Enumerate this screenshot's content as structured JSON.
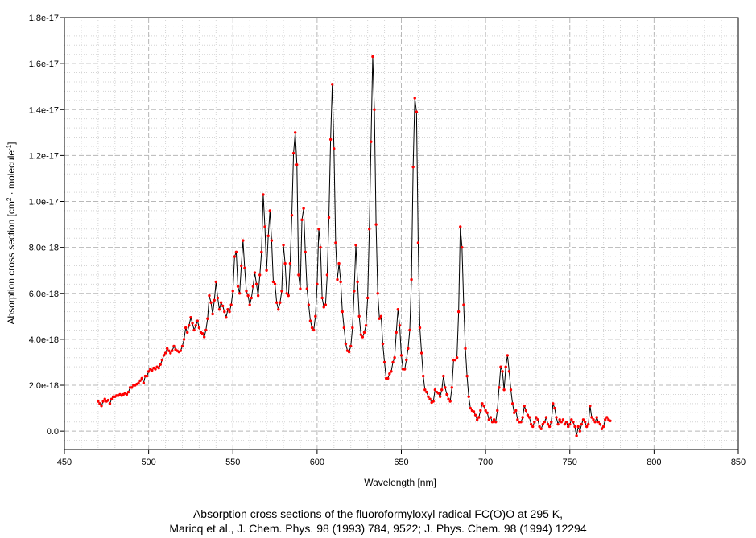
{
  "caption": {
    "line1": "Absorption cross sections of the fluoroformyloxyl radical FC(O)O at 295 K,",
    "line2": "Maricq et al., J. Chem. Phys. 98 (1993) 784, 9522; J. Phys. Chem. 98 (1994) 12294"
  },
  "chart_data": {
    "type": "line",
    "title": "",
    "xlabel": "Wavelength [nm]",
    "ylabel_main": "Absorption cross section [cm",
    "ylabel_sup1": "2",
    "ylabel_mid": " · molecule",
    "ylabel_sup2": "-1",
    "ylabel_end": "]",
    "xlim": [
      450,
      850
    ],
    "ylim": [
      -8e-19,
      1.8e-17
    ],
    "x_ticks": [
      450,
      500,
      550,
      600,
      650,
      700,
      750,
      800,
      850
    ],
    "x_tick_labels": [
      "450",
      "500",
      "550",
      "600",
      "650",
      "700",
      "750",
      "800",
      "850"
    ],
    "y_ticks": [
      0,
      2e-18,
      4e-18,
      6e-18,
      8e-18,
      1e-17,
      1.2e-17,
      1.4e-17,
      1.6e-17,
      1.8e-17
    ],
    "y_tick_labels": [
      "0.0",
      "2.0e-18",
      "4.0e-18",
      "6.0e-18",
      "8.0e-18",
      "1.0e-17",
      "1.2e-17",
      "1.4e-17",
      "1.6e-17",
      "1.8e-17"
    ],
    "grid": true,
    "line_color": "#000000",
    "marker_color": "#ff0000",
    "series": [
      {
        "x_start": 470,
        "x_step": 1,
        "values_e18": [
          1.3,
          1.2,
          1.1,
          1.3,
          1.4,
          1.3,
          1.35,
          1.2,
          1.4,
          1.5,
          1.5,
          1.55,
          1.55,
          1.6,
          1.55,
          1.6,
          1.65,
          1.6,
          1.7,
          1.9,
          1.9,
          2.0,
          2.0,
          2.05,
          2.1,
          2.2,
          2.3,
          2.1,
          2.4,
          2.4,
          2.6,
          2.7,
          2.65,
          2.75,
          2.7,
          2.8,
          2.75,
          2.9,
          3.1,
          3.3,
          3.4,
          3.6,
          3.5,
          3.4,
          3.5,
          3.7,
          3.55,
          3.5,
          3.45,
          3.5,
          3.7,
          4.0,
          4.5,
          4.3,
          4.6,
          4.95,
          4.7,
          4.4,
          4.6,
          4.8,
          4.5,
          4.3,
          4.25,
          4.1,
          4.4,
          4.9,
          5.9,
          5.6,
          5.1,
          5.7,
          6.5,
          5.8,
          5.3,
          5.6,
          5.45,
          5.2,
          4.95,
          5.3,
          5.2,
          5.5,
          6.1,
          7.6,
          7.8,
          6.3,
          6.0,
          7.2,
          8.3,
          7.1,
          6.1,
          5.9,
          5.5,
          5.8,
          6.3,
          6.9,
          6.4,
          5.9,
          6.8,
          7.8,
          10.3,
          8.9,
          7.0,
          8.5,
          9.6,
          8.3,
          6.5,
          6.4,
          5.6,
          5.3,
          5.6,
          6.1,
          8.1,
          7.3,
          6.0,
          5.9,
          7.3,
          9.4,
          12.1,
          13.0,
          11.6,
          6.8,
          6.2,
          9.2,
          9.7,
          7.8,
          6.2,
          5.5,
          4.8,
          4.5,
          4.4,
          5.0,
          6.4,
          8.8,
          8.0,
          5.8,
          5.4,
          5.5,
          6.8,
          9.3,
          12.7,
          15.1,
          12.3,
          8.2,
          6.6,
          7.3,
          6.5,
          5.2,
          4.5,
          3.8,
          3.5,
          3.45,
          3.7,
          4.5,
          6.1,
          8.1,
          6.5,
          5.0,
          4.2,
          4.1,
          4.3,
          4.6,
          5.8,
          8.8,
          12.6,
          16.3,
          14.0,
          9.0,
          6.0,
          4.9,
          5.0,
          3.8,
          3.0,
          2.3,
          2.3,
          2.5,
          2.6,
          3.0,
          3.2,
          4.3,
          5.3,
          4.6,
          3.3,
          2.7,
          2.7,
          3.1,
          3.6,
          4.4,
          6.6,
          11.5,
          14.5,
          13.9,
          8.2,
          4.5,
          3.4,
          2.4,
          1.8,
          1.7,
          1.5,
          1.4,
          1.25,
          1.3,
          1.8,
          1.7,
          1.65,
          1.5,
          1.8,
          2.4,
          1.9,
          1.6,
          1.4,
          1.3,
          1.9,
          3.1,
          3.1,
          3.2,
          5.2,
          8.9,
          8.0,
          5.5,
          3.6,
          2.4,
          1.5,
          1.0,
          0.9,
          0.85,
          0.7,
          0.5,
          0.6,
          0.9,
          1.2,
          1.1,
          0.9,
          0.8,
          0.5,
          0.6,
          0.4,
          0.5,
          0.4,
          0.9,
          1.9,
          2.8,
          2.6,
          1.8,
          2.8,
          3.3,
          2.6,
          1.8,
          1.2,
          0.8,
          0.9,
          0.5,
          0.4,
          0.4,
          0.6,
          1.1,
          0.9,
          0.7,
          0.6,
          0.3,
          0.2,
          0.4,
          0.6,
          0.5,
          0.2,
          0.1,
          0.3,
          0.4,
          0.6,
          0.3,
          0.2,
          0.4,
          1.2,
          1.0,
          0.6,
          0.3,
          0.5,
          0.4,
          0.5,
          0.3,
          0.4,
          0.2,
          0.3,
          0.5,
          0.4,
          0.2,
          -0.2,
          0.2,
          0.0,
          0.3,
          0.5,
          0.4,
          0.2,
          0.3,
          1.1,
          0.6,
          0.5,
          0.4,
          0.6,
          0.4,
          0.3,
          0.1,
          0.2,
          0.5,
          0.6,
          0.5,
          0.45
        ]
      }
    ]
  }
}
